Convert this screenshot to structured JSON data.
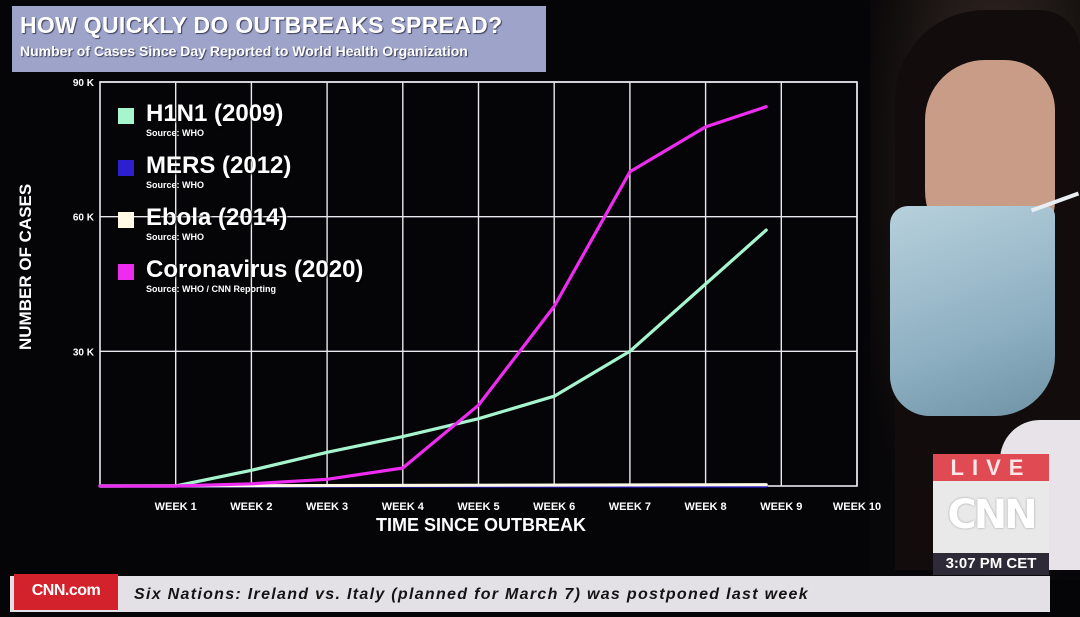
{
  "header": {
    "title": "HOW QUICKLY DO OUTBREAKS SPREAD?",
    "subtitle": "Number of Cases Since Day Reported to World Health Organization"
  },
  "chart_data": {
    "type": "line",
    "xlabel": "TIME SINCE OUTBREAK",
    "ylabel": "NUMBER OF CASES",
    "x_tick_labels": [
      "WEEK 1",
      "WEEK 2",
      "WEEK 3",
      "WEEK 4",
      "WEEK 5",
      "WEEK 6",
      "WEEK 7",
      "WEEK 8",
      "WEEK 9",
      "WEEK 10"
    ],
    "y_tick_labels": [
      "30 K",
      "60 K",
      "90 K"
    ],
    "y_ticks": [
      30000,
      60000,
      90000
    ],
    "xlim": [
      0,
      10
    ],
    "ylim": [
      0,
      90000
    ],
    "grid": true,
    "legend_position": "top-left",
    "series": [
      {
        "name": "H1N1 (2009)",
        "source": "Source: WHO",
        "color": "#a6f5cf",
        "x": [
          0,
          1,
          2,
          3,
          4,
          5,
          6,
          7,
          8,
          8.8
        ],
        "y": [
          0,
          0,
          3500,
          7500,
          11000,
          15000,
          20000,
          30000,
          45000,
          57000
        ]
      },
      {
        "name": "MERS (2012)",
        "source": "Source: WHO",
        "color": "#2c1fcf",
        "x": [
          0,
          8.8
        ],
        "y": [
          0,
          0
        ]
      },
      {
        "name": "Ebola (2014)",
        "source": "Source: WHO",
        "color": "#fff9e6",
        "x": [
          0,
          8.8
        ],
        "y": [
          0,
          300
        ]
      },
      {
        "name": "Coronavirus (2020)",
        "source": "Source: WHO / CNN Reporting",
        "color": "#ee2cf0",
        "x": [
          0,
          1,
          2,
          3,
          4,
          5,
          6,
          7,
          8,
          8.8
        ],
        "y": [
          0,
          0,
          500,
          1500,
          4000,
          18000,
          40000,
          70000,
          80000,
          84500
        ]
      }
    ]
  },
  "overlay": {
    "live_text": "LIVE",
    "network_logo": "CNN",
    "time": "3:07 PM CET"
  },
  "ticker": {
    "site_label": "CNN.com",
    "text": "Six Nations: Ireland vs. Italy (planned for March 7) was postponed last week"
  }
}
